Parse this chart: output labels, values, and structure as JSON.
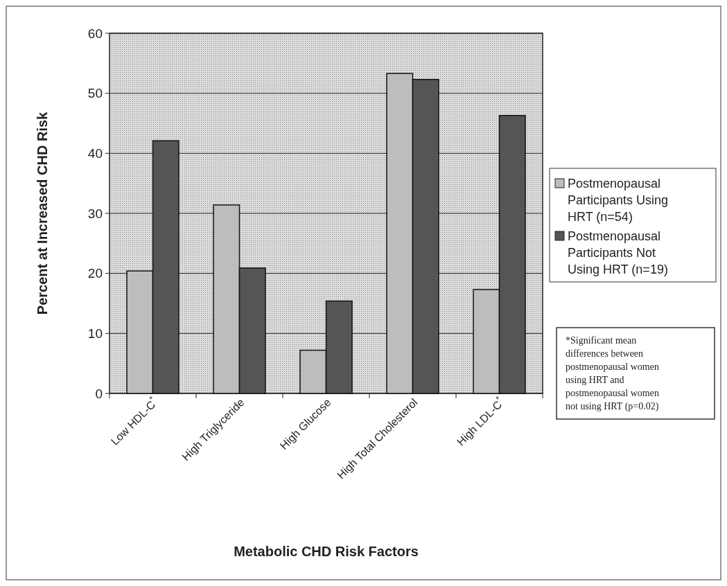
{
  "chart_data": {
    "type": "bar",
    "xlabel": "Metabolic CHD Risk Factors",
    "ylabel": "Percent at Increased CHD Risk",
    "categories": [
      "Low HDL-C$^{*}$",
      "High Triglyceride",
      "High Glucose",
      "High Total Cholesterol",
      "High LDL-C$^{*}$"
    ],
    "series": [
      {
        "name": "Postmenopausal Participants Using HRT (n=54)",
        "color": "#bdbdbd",
        "values": [
          20.4,
          31.4,
          7.2,
          53.3,
          17.3
        ]
      },
      {
        "name": "Postmenopausal Participants Not Using HRT (n=19)",
        "color": "#555555",
        "values": [
          42.1,
          20.9,
          15.4,
          52.3,
          46.3
        ]
      }
    ],
    "ylim": [
      0,
      60
    ],
    "yticks": [
      0,
      10,
      20,
      30,
      40,
      50,
      60
    ],
    "grid": "y",
    "legend": "right",
    "annotations": [
      "*Significant mean differences between postmenopausal women using HRT and postmenopausal women not using HRT (p=0.02)"
    ]
  }
}
